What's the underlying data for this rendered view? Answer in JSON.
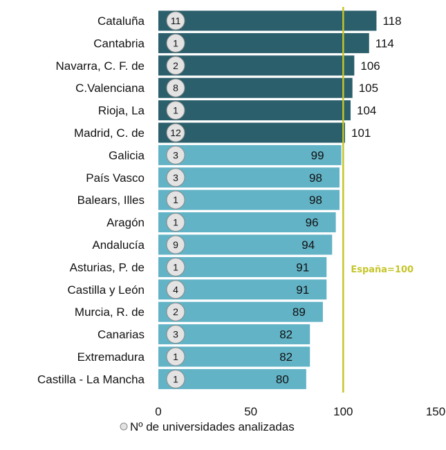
{
  "chart_data": {
    "type": "bar",
    "orientation": "horizontal",
    "categories": [
      "Cataluña",
      "Cantabria",
      "Navarra, C. F. de",
      "C.Valenciana",
      "Rioja, La",
      "Madrid, C. de",
      "Galicia",
      "País Vasco",
      "Balears, Illes",
      "Aragón",
      "Andalucía",
      "Asturias, P. de",
      "Castilla y León",
      "Murcia, R. de",
      "Canarias",
      "Extremadura",
      "Castilla - La Mancha"
    ],
    "values": [
      118,
      114,
      106,
      105,
      104,
      101,
      99,
      98,
      98,
      96,
      94,
      91,
      91,
      89,
      82,
      82,
      80
    ],
    "value_labels": [
      "118",
      "114",
      "106",
      "105",
      "104",
      "101",
      "99",
      "98",
      "98",
      "96",
      "94",
      "91",
      "91",
      "89",
      "82",
      "82",
      "80"
    ],
    "universities": [
      "11",
      "1",
      "2",
      "8",
      "1",
      "12",
      "3",
      "3",
      "1",
      "1",
      "9",
      "1",
      "4",
      "2",
      "3",
      "1",
      "1"
    ],
    "x_ticks": [
      "0",
      "50",
      "100",
      "150"
    ],
    "xlim": [
      0,
      150
    ],
    "reference_line": {
      "value": 100,
      "label": "España=100",
      "color": "#c5c52a"
    },
    "colors": {
      "above_reference": "#2a5f6b",
      "below_reference": "#62b3c6",
      "marker_fill": "#e3e3e3",
      "marker_stroke": "#8a8a8a"
    },
    "legend": {
      "label": "Nº de universidades analizadas",
      "position": "bottom"
    },
    "grid": false
  }
}
